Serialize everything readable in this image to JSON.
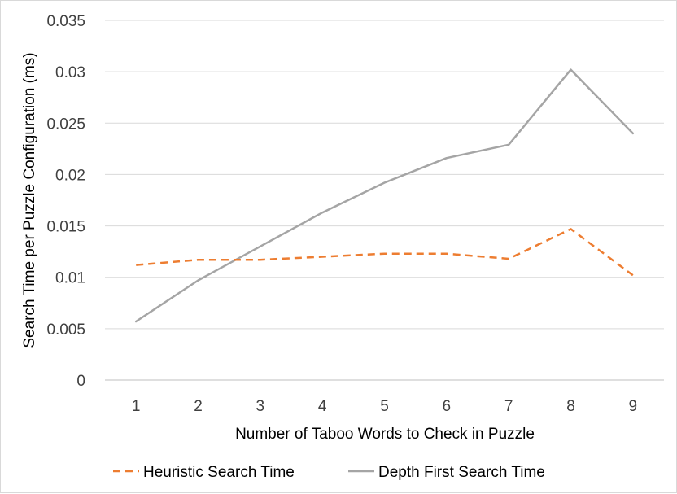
{
  "chart_data": {
    "type": "line",
    "title": "",
    "xlabel": "Number of Taboo Words to Check in Puzzle",
    "ylabel": "Search Time per Puzzle Configuration (ms)",
    "categories": [
      "1",
      "2",
      "3",
      "4",
      "5",
      "6",
      "7",
      "8",
      "9"
    ],
    "ylim": [
      0,
      0.035
    ],
    "yticks": [
      "0",
      "0.005",
      "0.01",
      "0.015",
      "0.02",
      "0.025",
      "0.03",
      "0.035"
    ],
    "grid": true,
    "legend_position": "bottom",
    "series": [
      {
        "name": "Heuristic Search Time",
        "color": "#ED7D31",
        "style": "dashed",
        "values": [
          0.0112,
          0.0117,
          0.0117,
          0.012,
          0.0123,
          0.0123,
          0.0118,
          0.0147,
          0.0102
        ]
      },
      {
        "name": "Depth First Search Time",
        "color": "#A5A5A5",
        "style": "solid",
        "values": [
          0.0057,
          0.0097,
          0.013,
          0.0163,
          0.0192,
          0.0216,
          0.0229,
          0.0302,
          0.024
        ]
      }
    ]
  }
}
